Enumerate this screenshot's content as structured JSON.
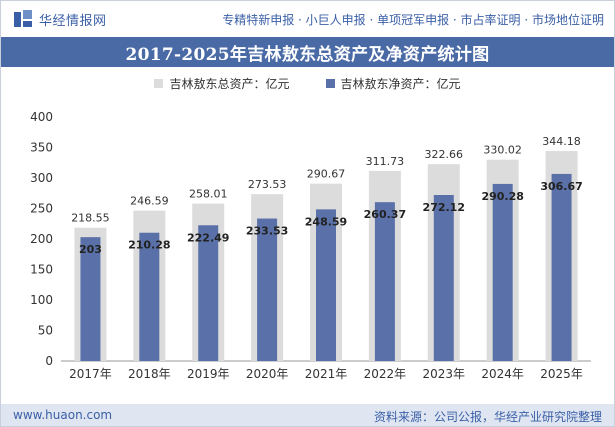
{
  "header": {
    "logo_text": "华经情报网",
    "tags": "专精特新申报 · 小巨人申报 · 单项冠军申报 · 市占率证明 · 市场地位证明"
  },
  "colors": {
    "brand": "#3a5fa6",
    "title_bar": "#4a6aa6",
    "total_bar": "#dcdcdc",
    "net_bar": "#5970a8",
    "footer_bg": "#dfe6f2"
  },
  "chart_data": {
    "type": "bar",
    "title": "2017-2025年吉林敖东总资产及净资产统计图",
    "categories": [
      "2017年",
      "2018年",
      "2019年",
      "2020年",
      "2021年",
      "2022年",
      "2023年",
      "2024年",
      "2025年"
    ],
    "series": [
      {
        "name": "吉林敖东总资产：亿元",
        "values": [
          218.55,
          246.59,
          258.01,
          273.53,
          290.67,
          311.73,
          322.66,
          330.02,
          344.18
        ]
      },
      {
        "name": "吉林敖东净资产：亿元",
        "values": [
          203,
          210.28,
          222.49,
          233.53,
          248.59,
          260.37,
          272.12,
          290.28,
          306.67
        ]
      }
    ],
    "yticks": [
      0,
      50,
      100,
      150,
      200,
      250,
      300,
      350,
      400
    ],
    "ylim": [
      0,
      400
    ],
    "legend_position": "top-center",
    "grid": false
  },
  "footer": {
    "url": "www.huaon.com",
    "source": "资料来源：公司公报，华经产业研究院整理"
  }
}
